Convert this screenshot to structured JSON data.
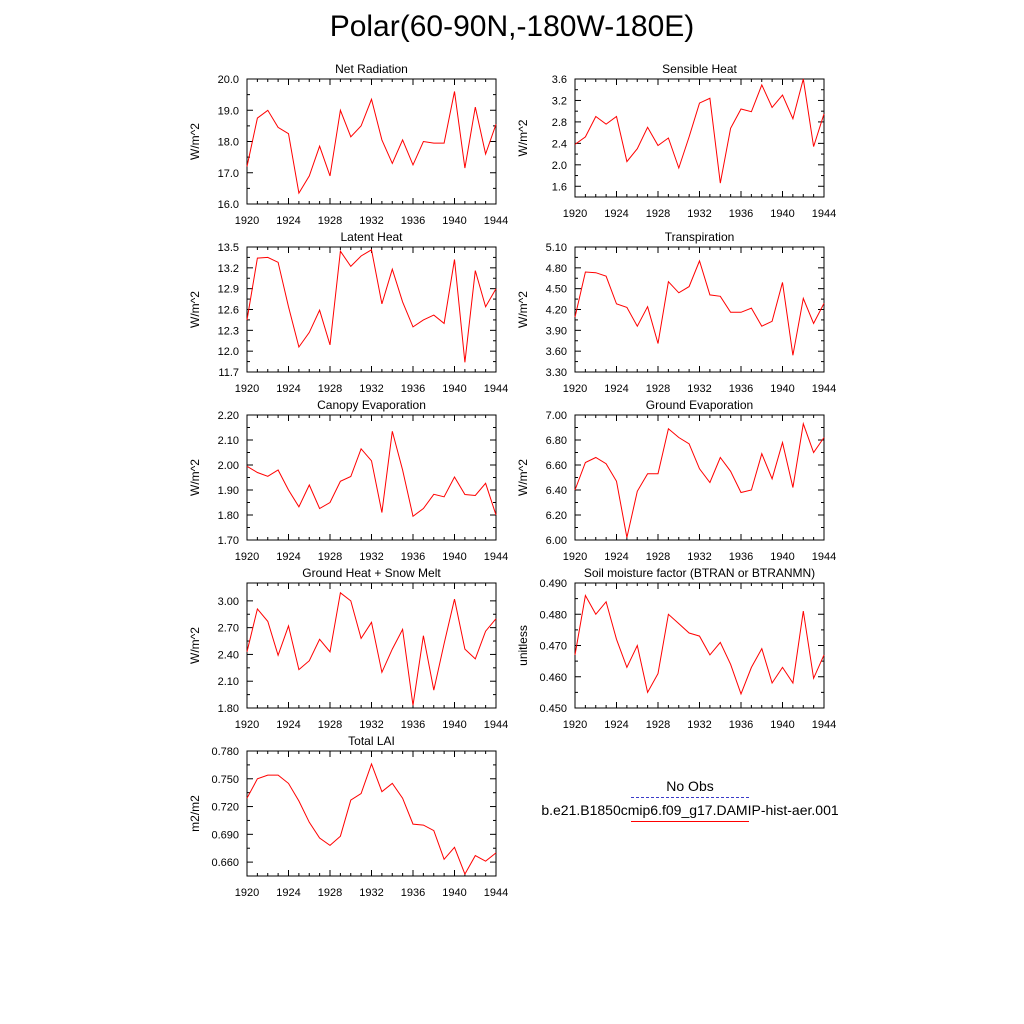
{
  "page": {
    "title": "Polar(60-90N,-180W-180E)"
  },
  "legend": {
    "entries": [
      {
        "label": "No Obs",
        "color": "#3b3bc8",
        "style": "dashed"
      },
      {
        "label": "b.e21.B1850cmip6.f09_g17.DAMIP-hist-aer.001",
        "color": "#ff0000",
        "style": "solid"
      }
    ]
  },
  "chart_data": [
    {
      "type": "line",
      "title": "Net Radiation",
      "ylabel": "W/m^2",
      "xlim": [
        1920,
        1944
      ],
      "ylim": [
        16.0,
        20.0
      ],
      "xticks": [
        "1920",
        "1924",
        "1928",
        "1932",
        "1936",
        "1940",
        "1944"
      ],
      "yticks": [
        "16.0",
        "17.0",
        "18.0",
        "19.0",
        "20.0"
      ],
      "series": [
        {
          "color": "#ff0000",
          "x": [
            1920,
            1921,
            1922,
            1923,
            1924,
            1925,
            1926,
            1927,
            1928,
            1929,
            1930,
            1931,
            1932,
            1933,
            1934,
            1935,
            1936,
            1937,
            1938,
            1939,
            1940,
            1941,
            1942,
            1943,
            1944
          ],
          "values": [
            17.2,
            18.75,
            19.0,
            18.45,
            18.25,
            16.35,
            16.9,
            17.85,
            16.9,
            19.0,
            18.15,
            18.5,
            19.35,
            18.05,
            17.3,
            18.05,
            17.25,
            18.0,
            17.95,
            17.95,
            19.6,
            17.15,
            19.1,
            17.6,
            18.55
          ]
        }
      ]
    },
    {
      "type": "line",
      "title": "Sensible Heat",
      "ylabel": "W/m^2",
      "xlim": [
        1920,
        1944
      ],
      "ylim": [
        1.4,
        3.6
      ],
      "xticks": [
        "1920",
        "1924",
        "1928",
        "1932",
        "1936",
        "1940",
        "1944"
      ],
      "yticks": [
        "1.6",
        "2.0",
        "2.4",
        "2.8",
        "3.2",
        "3.6"
      ],
      "series": [
        {
          "color": "#ff0000",
          "x": [
            1920,
            1921,
            1922,
            1923,
            1924,
            1925,
            1926,
            1927,
            1928,
            1929,
            1930,
            1931,
            1932,
            1933,
            1934,
            1935,
            1936,
            1937,
            1938,
            1939,
            1940,
            1941,
            1942,
            1943,
            1944
          ],
          "values": [
            2.38,
            2.52,
            2.9,
            2.76,
            2.9,
            2.06,
            2.3,
            2.7,
            2.36,
            2.5,
            1.94,
            2.52,
            3.15,
            3.24,
            1.66,
            2.68,
            3.04,
            2.99,
            3.49,
            3.07,
            3.3,
            2.86,
            3.6,
            2.34,
            2.95
          ]
        }
      ]
    },
    {
      "type": "line",
      "title": "Latent Heat",
      "ylabel": "W/m^2",
      "xlim": [
        1920,
        1944
      ],
      "ylim": [
        11.7,
        13.5
      ],
      "xticks": [
        "1920",
        "1924",
        "1928",
        "1932",
        "1936",
        "1940",
        "1944"
      ],
      "yticks": [
        "11.7",
        "12.0",
        "12.3",
        "12.6",
        "12.9",
        "13.2",
        "13.5"
      ],
      "series": [
        {
          "color": "#ff0000",
          "x": [
            1920,
            1921,
            1922,
            1923,
            1924,
            1925,
            1926,
            1927,
            1928,
            1929,
            1930,
            1931,
            1932,
            1933,
            1934,
            1935,
            1936,
            1937,
            1938,
            1939,
            1940,
            1941,
            1942,
            1943,
            1944
          ],
          "values": [
            12.45,
            13.34,
            13.35,
            13.28,
            12.64,
            12.06,
            12.27,
            12.59,
            12.09,
            13.44,
            13.22,
            13.37,
            13.46,
            12.68,
            13.18,
            12.71,
            12.35,
            12.45,
            12.52,
            12.4,
            13.32,
            11.84,
            13.16,
            12.64,
            12.9
          ]
        }
      ]
    },
    {
      "type": "line",
      "title": "Transpiration",
      "ylabel": "W/m^2",
      "xlim": [
        1920,
        1944
      ],
      "ylim": [
        3.3,
        5.1
      ],
      "xticks": [
        "1920",
        "1924",
        "1928",
        "1932",
        "1936",
        "1940",
        "1944"
      ],
      "yticks": [
        "3.30",
        "3.60",
        "3.90",
        "4.20",
        "4.50",
        "4.80",
        "5.10"
      ],
      "series": [
        {
          "color": "#ff0000",
          "x": [
            1920,
            1921,
            1922,
            1923,
            1924,
            1925,
            1926,
            1927,
            1928,
            1929,
            1930,
            1931,
            1932,
            1933,
            1934,
            1935,
            1936,
            1937,
            1938,
            1939,
            1940,
            1941,
            1942,
            1943,
            1944
          ],
          "values": [
            4.09,
            4.74,
            4.73,
            4.68,
            4.28,
            4.23,
            3.96,
            4.24,
            3.71,
            4.6,
            4.44,
            4.53,
            4.9,
            4.41,
            4.39,
            4.16,
            4.16,
            4.22,
            3.96,
            4.03,
            4.59,
            3.54,
            4.36,
            4.0,
            4.29
          ]
        }
      ]
    },
    {
      "type": "line",
      "title": "Canopy Evaporation",
      "ylabel": "W/m^2",
      "xlim": [
        1920,
        1944
      ],
      "ylim": [
        1.7,
        2.2
      ],
      "xticks": [
        "1920",
        "1924",
        "1928",
        "1932",
        "1936",
        "1940",
        "1944"
      ],
      "yticks": [
        "1.70",
        "1.80",
        "1.90",
        "2.00",
        "2.10",
        "2.20"
      ],
      "series": [
        {
          "color": "#ff0000",
          "x": [
            1920,
            1921,
            1922,
            1923,
            1924,
            1925,
            1926,
            1927,
            1928,
            1929,
            1930,
            1931,
            1932,
            1933,
            1934,
            1935,
            1936,
            1937,
            1938,
            1939,
            1940,
            1941,
            1942,
            1943,
            1944
          ],
          "values": [
            1.995,
            1.97,
            1.955,
            1.98,
            1.9,
            1.833,
            1.92,
            1.826,
            1.85,
            1.935,
            1.954,
            2.065,
            2.017,
            1.81,
            2.135,
            1.98,
            1.795,
            1.826,
            1.883,
            1.873,
            1.952,
            1.882,
            1.878,
            1.927,
            1.8
          ]
        }
      ]
    },
    {
      "type": "line",
      "title": "Ground Evaporation",
      "ylabel": "W/m^2",
      "xlim": [
        1920,
        1944
      ],
      "ylim": [
        6.0,
        7.0
      ],
      "xticks": [
        "1920",
        "1924",
        "1928",
        "1932",
        "1936",
        "1940",
        "1944"
      ],
      "yticks": [
        "6.00",
        "6.20",
        "6.40",
        "6.60",
        "6.80",
        "7.00"
      ],
      "series": [
        {
          "color": "#ff0000",
          "x": [
            1920,
            1921,
            1922,
            1923,
            1924,
            1925,
            1926,
            1927,
            1928,
            1929,
            1930,
            1931,
            1932,
            1933,
            1934,
            1935,
            1936,
            1937,
            1938,
            1939,
            1940,
            1941,
            1942,
            1943,
            1944
          ],
          "values": [
            6.4,
            6.62,
            6.66,
            6.61,
            6.47,
            6.02,
            6.39,
            6.53,
            6.53,
            6.89,
            6.82,
            6.77,
            6.57,
            6.46,
            6.66,
            6.55,
            6.38,
            6.4,
            6.69,
            6.49,
            6.78,
            6.42,
            6.93,
            6.7,
            6.82
          ]
        }
      ]
    },
    {
      "type": "line",
      "title": "Ground Heat + Snow Melt",
      "ylabel": "W/m^2",
      "xlim": [
        1920,
        1944
      ],
      "ylim": [
        1.8,
        3.2
      ],
      "xticks": [
        "1920",
        "1924",
        "1928",
        "1932",
        "1936",
        "1940",
        "1944"
      ],
      "yticks": [
        "1.80",
        "2.10",
        "2.40",
        "2.70",
        "3.00"
      ],
      "series": [
        {
          "color": "#ff0000",
          "x": [
            1920,
            1921,
            1922,
            1923,
            1924,
            1925,
            1926,
            1927,
            1928,
            1929,
            1930,
            1931,
            1932,
            1933,
            1934,
            1935,
            1936,
            1937,
            1938,
            1939,
            1940,
            1941,
            1942,
            1943,
            1944
          ],
          "values": [
            2.43,
            2.91,
            2.77,
            2.39,
            2.72,
            2.23,
            2.33,
            2.57,
            2.43,
            3.09,
            3.0,
            2.58,
            2.76,
            2.2,
            2.46,
            2.68,
            1.83,
            2.61,
            2.0,
            2.52,
            3.02,
            2.46,
            2.35,
            2.66,
            2.8
          ]
        }
      ]
    },
    {
      "type": "line",
      "title": "Soil moisture factor (BTRAN or BTRANMN)",
      "ylabel": "unitless",
      "xlim": [
        1920,
        1944
      ],
      "ylim": [
        0.45,
        0.49
      ],
      "xticks": [
        "1920",
        "1924",
        "1928",
        "1932",
        "1936",
        "1940",
        "1944"
      ],
      "yticks": [
        "0.450",
        "0.460",
        "0.470",
        "0.480",
        "0.490"
      ],
      "series": [
        {
          "color": "#ff0000",
          "x": [
            1920,
            1921,
            1922,
            1923,
            1924,
            1925,
            1926,
            1927,
            1928,
            1929,
            1930,
            1931,
            1932,
            1933,
            1934,
            1935,
            1936,
            1937,
            1938,
            1939,
            1940,
            1941,
            1942,
            1943,
            1944
          ],
          "values": [
            0.467,
            0.486,
            0.48,
            0.484,
            0.472,
            0.463,
            0.47,
            0.455,
            0.461,
            0.48,
            0.477,
            0.474,
            0.473,
            0.467,
            0.471,
            0.464,
            0.4545,
            0.463,
            0.469,
            0.458,
            0.463,
            0.458,
            0.481,
            0.4595,
            0.467
          ]
        }
      ]
    },
    {
      "type": "line",
      "title": "Total LAI",
      "ylabel": "m2/m2",
      "xlim": [
        1920,
        1944
      ],
      "ylim": [
        0.645,
        0.78
      ],
      "xticks": [
        "1920",
        "1924",
        "1928",
        "1932",
        "1936",
        "1940",
        "1944"
      ],
      "yticks": [
        "0.660",
        "0.690",
        "0.720",
        "0.750",
        "0.780"
      ],
      "series": [
        {
          "color": "#ff0000",
          "x": [
            1920,
            1921,
            1922,
            1923,
            1924,
            1925,
            1926,
            1927,
            1928,
            1929,
            1930,
            1931,
            1932,
            1933,
            1934,
            1935,
            1936,
            1937,
            1938,
            1939,
            1940,
            1941,
            1942,
            1943,
            1944
          ],
          "values": [
            0.729,
            0.75,
            0.754,
            0.754,
            0.745,
            0.726,
            0.703,
            0.686,
            0.678,
            0.688,
            0.727,
            0.734,
            0.766,
            0.736,
            0.745,
            0.729,
            0.701,
            0.7,
            0.694,
            0.663,
            0.676,
            0.647,
            0.667,
            0.661,
            0.67
          ]
        }
      ]
    }
  ]
}
